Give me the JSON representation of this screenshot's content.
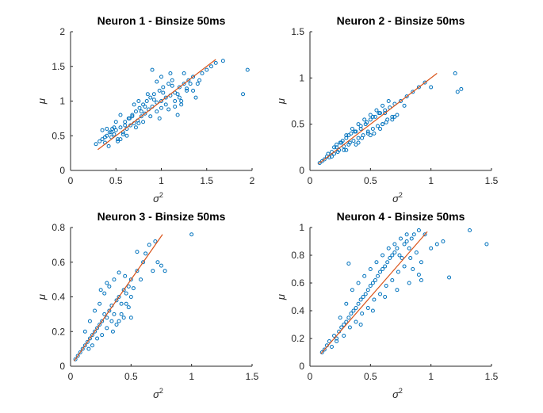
{
  "colors": {
    "points": "#0072BD",
    "fit": "#D95319",
    "axes": "#262626"
  },
  "chart_data": [
    {
      "type": "scatter",
      "title": "Neuron 1 - Binsize 50ms",
      "xlabel": "σ",
      "xlabel_sup": "2",
      "ylabel": "μ",
      "xlim": [
        0,
        2
      ],
      "ylim": [
        0,
        2
      ],
      "xticks": [
        0,
        0.5,
        1,
        1.5,
        2
      ],
      "xtick_labels": [
        "0",
        "0.5",
        "1",
        "1.5",
        "2"
      ],
      "yticks": [
        0,
        0.5,
        1,
        1.5,
        2
      ],
      "ytick_labels": [
        "0",
        "0.5",
        "1",
        "1.5",
        "2"
      ],
      "grid": false,
      "series": [
        {
          "kind": "points",
          "x": [
            0.28,
            0.32,
            0.35,
            0.38,
            0.4,
            0.42,
            0.43,
            0.45,
            0.46,
            0.48,
            0.5,
            0.52,
            0.55,
            0.58,
            0.6,
            0.62,
            0.64,
            0.66,
            0.68,
            0.7,
            0.72,
            0.74,
            0.76,
            0.78,
            0.8,
            0.82,
            0.84,
            0.86,
            0.88,
            0.9,
            0.92,
            0.95,
            0.98,
            1.0,
            1.02,
            1.05,
            1.08,
            1.1,
            1.12,
            1.15,
            1.18,
            1.2,
            1.22,
            1.25,
            1.28,
            1.3,
            1.35,
            1.4,
            1.45,
            1.5,
            1.55,
            1.6,
            1.68,
            1.9,
            1.95,
            0.4,
            0.5,
            0.55,
            0.65,
            0.7,
            0.75,
            0.85,
            0.95,
            1.05,
            1.15,
            1.25,
            1.35,
            0.45,
            0.6,
            0.8,
            1.0,
            1.2,
            0.38,
            0.58,
            0.78,
            0.98,
            1.18,
            1.38,
            0.48,
            0.68,
            0.88,
            1.08,
            1.28,
            0.52,
            0.72,
            0.92,
            1.12,
            1.32,
            0.62,
            0.82,
            1.02,
            1.22,
            1.42,
            0.35,
            0.55,
            0.75,
            0.95,
            1.15,
            0.9,
            1.0,
            1.1
          ],
          "y": [
            0.38,
            0.42,
            0.45,
            0.4,
            0.5,
            0.35,
            0.55,
            0.48,
            0.6,
            0.52,
            0.58,
            0.45,
            0.62,
            0.55,
            0.7,
            0.6,
            0.75,
            0.65,
            0.8,
            0.68,
            0.85,
            0.72,
            0.9,
            0.78,
            0.95,
            0.82,
            1.0,
            0.88,
            1.05,
            0.92,
            1.1,
            0.98,
            1.15,
            1.0,
            1.2,
            1.05,
            1.25,
            1.08,
            1.3,
            1.12,
            1.1,
            1.2,
            1.0,
            1.25,
            1.15,
            1.3,
            1.35,
            1.25,
            1.4,
            1.45,
            1.5,
            1.55,
            1.58,
            1.1,
            1.45,
            0.6,
            0.7,
            0.8,
            0.75,
            0.95,
            1.0,
            1.1,
            0.85,
            0.95,
            1.0,
            1.4,
            1.15,
            0.55,
            0.65,
            0.7,
            0.9,
            1.05,
            0.48,
            0.52,
            0.85,
            0.75,
            0.8,
            1.05,
            0.62,
            0.78,
            0.78,
            0.88,
            1.18,
            0.42,
            0.62,
            1.02,
            1.22,
            1.25,
            0.5,
            0.92,
            1.12,
            0.95,
            1.3,
            0.58,
            0.45,
            0.68,
            1.28,
            0.92,
            1.45,
            1.35,
            1.4
          ]
        },
        {
          "kind": "line",
          "x": [
            0.3,
            1.6
          ],
          "y": [
            0.3,
            1.6
          ]
        }
      ]
    },
    {
      "type": "scatter",
      "title": "Neuron 2 - Binsize 50ms",
      "xlabel": "σ",
      "xlabel_sup": "2",
      "ylabel": "μ",
      "xlim": [
        0,
        1.5
      ],
      "ylim": [
        0,
        1.5
      ],
      "xticks": [
        0,
        0.5,
        1,
        1.5
      ],
      "xtick_labels": [
        "0",
        "0.5",
        "1",
        "1.5"
      ],
      "yticks": [
        0,
        0.5,
        1,
        1.5
      ],
      "ytick_labels": [
        "0",
        "0.5",
        "1",
        "1.5"
      ],
      "grid": false,
      "series": [
        {
          "kind": "points",
          "x": [
            0.08,
            0.1,
            0.12,
            0.14,
            0.16,
            0.18,
            0.2,
            0.22,
            0.24,
            0.26,
            0.28,
            0.3,
            0.32,
            0.34,
            0.36,
            0.38,
            0.4,
            0.42,
            0.44,
            0.46,
            0.48,
            0.5,
            0.52,
            0.54,
            0.56,
            0.58,
            0.6,
            0.62,
            0.64,
            0.66,
            0.68,
            0.7,
            0.72,
            0.75,
            0.78,
            0.8,
            0.85,
            0.9,
            0.95,
            1.0,
            1.2,
            1.22,
            1.25,
            0.15,
            0.2,
            0.25,
            0.3,
            0.35,
            0.4,
            0.45,
            0.5,
            0.55,
            0.6,
            0.65,
            0.18,
            0.23,
            0.28,
            0.33,
            0.38,
            0.43,
            0.48,
            0.53,
            0.58,
            0.63,
            0.68,
            0.22,
            0.27,
            0.32,
            0.37,
            0.42,
            0.47,
            0.52,
            0.57,
            0.62,
            0.3,
            0.4,
            0.5,
            0.6,
            0.7
          ],
          "y": [
            0.08,
            0.1,
            0.12,
            0.15,
            0.14,
            0.2,
            0.18,
            0.25,
            0.22,
            0.3,
            0.26,
            0.35,
            0.28,
            0.4,
            0.32,
            0.42,
            0.35,
            0.45,
            0.38,
            0.5,
            0.42,
            0.55,
            0.45,
            0.58,
            0.48,
            0.62,
            0.5,
            0.65,
            0.55,
            0.68,
            0.58,
            0.72,
            0.6,
            0.75,
            0.7,
            0.8,
            0.85,
            0.9,
            0.95,
            0.9,
            1.05,
            0.85,
            0.88,
            0.18,
            0.25,
            0.3,
            0.38,
            0.45,
            0.5,
            0.55,
            0.6,
            0.65,
            0.7,
            0.75,
            0.15,
            0.2,
            0.22,
            0.3,
            0.28,
            0.35,
            0.4,
            0.4,
            0.45,
            0.52,
            0.55,
            0.28,
            0.32,
            0.38,
            0.42,
            0.48,
            0.52,
            0.58,
            0.62,
            0.62,
            0.22,
            0.3,
            0.38,
            0.5,
            0.58
          ]
        },
        {
          "kind": "line",
          "x": [
            0.07,
            1.05
          ],
          "y": [
            0.07,
            1.05
          ]
        }
      ]
    },
    {
      "type": "scatter",
      "title": "Neuron 3 - Binsize 50ms",
      "xlabel": "σ",
      "xlabel_sup": "2",
      "ylabel": "μ",
      "xlim": [
        0,
        1.5
      ],
      "ylim": [
        0,
        0.8
      ],
      "xticks": [
        0,
        0.5,
        1,
        1.5
      ],
      "xtick_labels": [
        "0",
        "0.5",
        "1",
        "1.5"
      ],
      "yticks": [
        0,
        0.2,
        0.4,
        0.6,
        0.8
      ],
      "ytick_labels": [
        "0",
        "0.2",
        "0.4",
        "0.6",
        "0.8"
      ],
      "grid": false,
      "series": [
        {
          "kind": "points",
          "x": [
            0.04,
            0.06,
            0.08,
            0.1,
            0.12,
            0.14,
            0.16,
            0.18,
            0.2,
            0.22,
            0.24,
            0.26,
            0.28,
            0.3,
            0.32,
            0.34,
            0.36,
            0.38,
            0.4,
            0.42,
            0.44,
            0.46,
            0.48,
            0.5,
            0.52,
            0.55,
            0.58,
            0.6,
            0.62,
            0.65,
            0.68,
            0.7,
            0.72,
            0.75,
            0.78,
            1.0,
            0.12,
            0.16,
            0.2,
            0.24,
            0.28,
            0.32,
            0.36,
            0.4,
            0.44,
            0.48,
            0.18,
            0.22,
            0.26,
            0.3,
            0.34,
            0.38,
            0.42,
            0.46,
            0.5,
            0.15,
            0.25,
            0.35,
            0.45,
            0.55,
            0.3,
            0.4,
            0.5
          ],
          "y": [
            0.04,
            0.06,
            0.08,
            0.1,
            0.12,
            0.14,
            0.16,
            0.18,
            0.2,
            0.22,
            0.24,
            0.26,
            0.3,
            0.28,
            0.32,
            0.35,
            0.3,
            0.38,
            0.4,
            0.36,
            0.44,
            0.42,
            0.46,
            0.5,
            0.45,
            0.55,
            0.5,
            0.6,
            0.65,
            0.7,
            0.55,
            0.72,
            0.6,
            0.58,
            0.55,
            0.76,
            0.2,
            0.26,
            0.32,
            0.36,
            0.42,
            0.46,
            0.5,
            0.54,
            0.28,
            0.34,
            0.12,
            0.16,
            0.18,
            0.22,
            0.26,
            0.24,
            0.3,
            0.36,
            0.4,
            0.1,
            0.44,
            0.2,
            0.52,
            0.66,
            0.48,
            0.26,
            0.28
          ]
        },
        {
          "kind": "line",
          "x": [
            0.03,
            0.76
          ],
          "y": [
            0.03,
            0.76
          ]
        }
      ]
    },
    {
      "type": "scatter",
      "title": "Neuron 4 - Binsize 50ms",
      "xlabel": "σ",
      "xlabel_sup": "2",
      "ylabel": "μ",
      "xlim": [
        0,
        1.5
      ],
      "ylim": [
        0,
        1
      ],
      "xticks": [
        0,
        0.5,
        1,
        1.5
      ],
      "xtick_labels": [
        "0",
        "0.5",
        "1",
        "1.5"
      ],
      "yticks": [
        0,
        0.2,
        0.4,
        0.6,
        0.8,
        1
      ],
      "ytick_labels": [
        "0",
        "0.2",
        "0.4",
        "0.6",
        "0.8",
        "1"
      ],
      "grid": false,
      "series": [
        {
          "kind": "points",
          "x": [
            0.1,
            0.12,
            0.14,
            0.16,
            0.18,
            0.2,
            0.22,
            0.24,
            0.26,
            0.28,
            0.3,
            0.32,
            0.34,
            0.36,
            0.38,
            0.4,
            0.42,
            0.44,
            0.46,
            0.48,
            0.5,
            0.52,
            0.54,
            0.56,
            0.58,
            0.6,
            0.62,
            0.64,
            0.66,
            0.68,
            0.7,
            0.72,
            0.74,
            0.76,
            0.78,
            0.8,
            0.82,
            0.84,
            0.86,
            0.88,
            0.9,
            0.92,
            0.95,
            1.0,
            1.05,
            1.1,
            1.15,
            1.32,
            1.46,
            0.25,
            0.3,
            0.35,
            0.4,
            0.45,
            0.5,
            0.55,
            0.6,
            0.65,
            0.7,
            0.75,
            0.8,
            0.85,
            0.9,
            0.28,
            0.33,
            0.38,
            0.43,
            0.48,
            0.53,
            0.58,
            0.63,
            0.68,
            0.73,
            0.78,
            0.83,
            0.22,
            0.32,
            0.42,
            0.52,
            0.62,
            0.72,
            0.82,
            0.92
          ],
          "y": [
            0.1,
            0.12,
            0.15,
            0.18,
            0.14,
            0.22,
            0.2,
            0.25,
            0.28,
            0.3,
            0.32,
            0.35,
            0.38,
            0.4,
            0.42,
            0.45,
            0.48,
            0.5,
            0.52,
            0.55,
            0.58,
            0.6,
            0.62,
            0.65,
            0.68,
            0.7,
            0.72,
            0.75,
            0.78,
            0.8,
            0.82,
            0.85,
            0.8,
            0.78,
            0.88,
            0.9,
            0.85,
            0.92,
            0.95,
            0.82,
            0.98,
            0.75,
            0.95,
            0.85,
            0.88,
            0.9,
            0.64,
            0.98,
            0.88,
            0.35,
            0.45,
            0.55,
            0.6,
            0.65,
            0.7,
            0.75,
            0.8,
            0.85,
            0.88,
            0.92,
            0.95,
            0.7,
            0.66,
            0.22,
            0.28,
            0.32,
            0.38,
            0.42,
            0.48,
            0.52,
            0.58,
            0.62,
            0.68,
            0.72,
            0.78,
            0.18,
            0.74,
            0.3,
            0.4,
            0.5,
            0.55,
            0.6,
            0.62
          ]
        },
        {
          "kind": "line",
          "x": [
            0.09,
            0.97
          ],
          "y": [
            0.09,
            0.97
          ]
        }
      ]
    }
  ]
}
